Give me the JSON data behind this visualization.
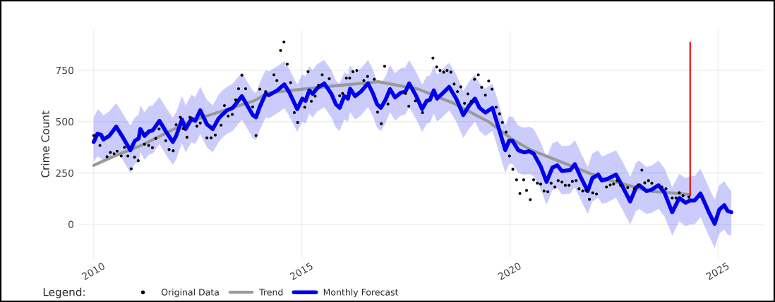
{
  "chart_data": {
    "type": "line",
    "ylabel": "Crime Count",
    "legend_title": "Legend:",
    "legend": "bottom",
    "grid": true,
    "xlim": [
      2009.61,
      2026.09
    ],
    "xticks": [
      2010,
      2015,
      2020,
      2025
    ],
    "ylim": [
      -165,
      945
    ],
    "yticks": [
      0,
      250,
      500,
      750
    ],
    "series": [
      {
        "name": "Original Data",
        "type": "scatter",
        "marker": "circle",
        "color": "#000000",
        "x": [
          2010.0,
          2010.15,
          2010.32,
          2010.4,
          2010.49,
          2010.56,
          2010.66,
          2010.74,
          2010.82,
          2010.9,
          2010.98,
          2011.07,
          2011.22,
          2011.32,
          2011.41,
          2011.49,
          2011.57,
          2011.73,
          2011.81,
          2011.91,
          2011.98,
          2012.08,
          2012.15,
          2012.24,
          2012.31,
          2012.48,
          2012.56,
          2012.72,
          2012.82,
          2012.92,
          2013.06,
          2013.14,
          2013.23,
          2013.33,
          2013.41,
          2013.48,
          2013.56,
          2013.65,
          2013.82,
          2013.9,
          2013.99,
          2014.13,
          2014.33,
          2014.4,
          2014.49,
          2014.57,
          2014.65,
          2014.73,
          2014.82,
          2014.9,
          2015.07,
          2015.15,
          2015.23,
          2015.32,
          2015.4,
          2015.49,
          2015.66,
          2015.91,
          2015.98,
          2016.07,
          2016.15,
          2016.23,
          2016.32,
          2016.49,
          2016.58,
          2016.74,
          2016.82,
          2016.91,
          2016.99,
          2017.07,
          2017.49,
          2017.57,
          2017.73,
          2017.9,
          2018.15,
          2018.24,
          2018.32,
          2018.41,
          2018.49,
          2018.58,
          2018.66,
          2018.74,
          2018.82,
          2018.91,
          2018.99,
          2019.07,
          2019.15,
          2019.24,
          2019.32,
          2019.41,
          2019.49,
          2019.57,
          2019.67,
          2019.75,
          2019.82,
          2019.91,
          2019.99,
          2020.07,
          2020.16,
          2020.24,
          2020.33,
          2020.4,
          2020.49,
          2020.57,
          2020.66,
          2020.74,
          2020.82,
          2020.91,
          2020.99,
          2021.08,
          2021.16,
          2021.25,
          2021.33,
          2021.42,
          2021.5,
          2021.59,
          2021.66,
          2021.75,
          2021.83,
          2021.91,
          2021.99,
          2022.08,
          2022.32,
          2022.41,
          2022.49,
          2022.58,
          2022.66,
          2022.83,
          2022.99,
          2023.08,
          2023.17,
          2023.24,
          2023.33,
          2023.41,
          2023.65,
          2023.75,
          2023.9,
          2023.99,
          2024.07,
          2024.16,
          2024.3
        ],
        "values": [
          432,
          384,
          329,
          350,
          344,
          356,
          333,
          375,
          333,
          270,
          327,
          310,
          390,
          384,
          373,
          418,
          464,
          407,
          364,
          358,
          485,
          521,
          466,
          424,
          521,
          478,
          493,
          421,
          421,
          435,
          483,
          578,
          527,
          535,
          606,
          660,
          726,
          660,
          572,
          432,
          658,
          646,
          728,
          700,
          846,
          888,
          780,
          690,
          544,
          496,
          570,
          743,
          599,
          624,
          677,
          728,
          709,
          626,
          637,
          712,
          712,
          743,
          749,
          700,
          720,
          706,
          546,
          490,
          770,
          586,
          637,
          575,
          601,
          544,
          809,
          766,
          749,
          741,
          749,
          741,
          683,
          646,
          669,
          589,
          635,
          599,
          706,
          728,
          667,
          629,
          698,
          658,
          570,
          538,
          496,
          449,
          333,
          268,
          217,
          150,
          217,
          165,
          120,
          217,
          200,
          196,
          162,
          159,
          200,
          182,
          213,
          206,
          190,
          190,
          209,
          213,
          173,
          162,
          165,
          122,
          153,
          148,
          182,
          192,
          196,
          213,
          190,
          179,
          173,
          192,
          264,
          202,
          213,
          200,
          182,
          173,
          128,
          128,
          154,
          139,
          133
        ]
      },
      {
        "name": "Trend",
        "marker": "none",
        "color": "#999999",
        "x": [
          2010.0,
          2010.57,
          2011.14,
          2012.27,
          2013.85,
          2014.19,
          2015.54,
          2016.84,
          2017.8,
          2018.65,
          2019.5,
          2020.06,
          2020.51,
          2021.08,
          2022.21,
          2023.34,
          2024.33
        ],
        "values": [
          287,
          339,
          384,
          498,
          601,
          640,
          669,
          694,
          658,
          589,
          498,
          413,
          361,
          316,
          225,
          162,
          145
        ]
      },
      {
        "name": "Monthly Forecast",
        "marker": "none",
        "color": "#0000ee",
        "x": [
          2010.0,
          2010.09,
          2010.18,
          2010.23,
          2010.37,
          2010.54,
          2010.68,
          2010.88,
          2010.99,
          2011.08,
          2011.12,
          2011.22,
          2011.33,
          2011.42,
          2011.58,
          2011.73,
          2011.9,
          2011.98,
          2012.12,
          2012.21,
          2012.35,
          2012.44,
          2012.56,
          2012.72,
          2012.86,
          2013.0,
          2013.08,
          2013.2,
          2013.34,
          2013.56,
          2013.82,
          2013.9,
          2013.99,
          2014.13,
          2014.21,
          2014.41,
          2014.58,
          2014.69,
          2014.89,
          2015.01,
          2015.09,
          2015.18,
          2015.26,
          2015.37,
          2015.54,
          2015.71,
          2015.82,
          2015.91,
          2016.02,
          2016.11,
          2016.16,
          2016.28,
          2016.42,
          2016.59,
          2016.7,
          2016.81,
          2016.9,
          2017.01,
          2017.12,
          2017.24,
          2017.38,
          2017.49,
          2017.58,
          2017.75,
          2017.89,
          2018.0,
          2018.08,
          2018.17,
          2018.25,
          2018.37,
          2018.54,
          2018.71,
          2018.88,
          2019.02,
          2019.16,
          2019.27,
          2019.41,
          2019.58,
          2019.72,
          2019.89,
          2019.98,
          2020.06,
          2020.2,
          2020.35,
          2020.46,
          2020.57,
          2020.74,
          2020.88,
          2021.02,
          2021.14,
          2021.25,
          2021.45,
          2021.56,
          2021.7,
          2021.87,
          2021.98,
          2022.12,
          2022.21,
          2022.32,
          2022.55,
          2022.72,
          2022.89,
          2023.03,
          2023.11,
          2023.28,
          2023.4,
          2023.57,
          2023.71,
          2023.9,
          2024.07,
          2024.22,
          2024.33,
          2024.44,
          2024.58,
          2024.78,
          2024.92,
          2025.03,
          2025.15,
          2025.23,
          2025.32
        ],
        "values": [
          401,
          441,
          435,
          413,
          430,
          475,
          430,
          361,
          407,
          418,
          464,
          430,
          453,
          458,
          504,
          453,
          401,
          430,
          510,
          464,
          515,
          504,
          555,
          487,
          464,
          515,
          532,
          555,
          567,
          624,
          532,
          521,
          572,
          635,
          629,
          652,
          681,
          646,
          561,
          612,
          601,
          652,
          635,
          663,
          686,
          635,
          584,
          567,
          624,
          612,
          660,
          624,
          646,
          686,
          641,
          584,
          567,
          606,
          658,
          618,
          641,
          646,
          686,
          624,
          561,
          601,
          606,
          652,
          612,
          635,
          669,
          612,
          532,
          578,
          612,
          567,
          544,
          567,
          475,
          361,
          407,
          407,
          361,
          350,
          356,
          344,
          282,
          207,
          276,
          287,
          259,
          264,
          293,
          230,
          162,
          225,
          242,
          213,
          219,
          242,
          179,
          111,
          179,
          190,
          162,
          168,
          190,
          156,
          59,
          128,
          105,
          116,
          116,
          150,
          59,
          2,
          71,
          93,
          65,
          59
        ],
        "upper": [
          520,
          560,
          545,
          530,
          550,
          590,
          545,
          480,
          520,
          535,
          580,
          545,
          575,
          580,
          620,
          570,
          520,
          545,
          625,
          580,
          630,
          620,
          670,
          605,
          580,
          630,
          650,
          670,
          685,
          740,
          650,
          640,
          690,
          750,
          745,
          770,
          795,
          760,
          680,
          730,
          720,
          770,
          750,
          780,
          800,
          750,
          700,
          685,
          740,
          730,
          775,
          740,
          760,
          800,
          755,
          700,
          685,
          720,
          775,
          735,
          760,
          765,
          800,
          740,
          680,
          720,
          725,
          770,
          730,
          755,
          785,
          730,
          650,
          695,
          730,
          685,
          660,
          685,
          595,
          480,
          525,
          525,
          480,
          470,
          475,
          465,
          400,
          325,
          395,
          405,
          380,
          385,
          410,
          350,
          280,
          345,
          360,
          330,
          340,
          360,
          300,
          230,
          300,
          310,
          280,
          285,
          310,
          275,
          180,
          245,
          225,
          235,
          235,
          270,
          180,
          120,
          190,
          210,
          185,
          160
        ],
        "lower": [
          305,
          330,
          320,
          300,
          320,
          360,
          320,
          250,
          295,
          305,
          350,
          315,
          340,
          345,
          390,
          340,
          290,
          315,
          395,
          350,
          400,
          390,
          440,
          375,
          350,
          400,
          420,
          440,
          455,
          510,
          420,
          410,
          460,
          520,
          515,
          540,
          565,
          530,
          450,
          500,
          490,
          540,
          520,
          550,
          570,
          520,
          470,
          455,
          510,
          500,
          545,
          510,
          530,
          570,
          530,
          470,
          455,
          495,
          545,
          505,
          530,
          535,
          570,
          510,
          450,
          490,
          495,
          540,
          500,
          520,
          555,
          500,
          420,
          465,
          500,
          455,
          430,
          455,
          365,
          250,
          295,
          295,
          250,
          240,
          245,
          235,
          170,
          95,
          165,
          175,
          145,
          150,
          180,
          120,
          50,
          110,
          130,
          100,
          105,
          130,
          65,
          0,
          65,
          75,
          50,
          55,
          75,
          40,
          -55,
          15,
          -10,
          0,
          0,
          35,
          -55,
          -115,
          -45,
          -25,
          -50,
          -55
        ]
      },
      {
        "marker": "none",
        "color": "#ee0000",
        "x": [
          2024.33,
          2024.33
        ],
        "values": [
          885,
          140
        ]
      }
    ]
  }
}
